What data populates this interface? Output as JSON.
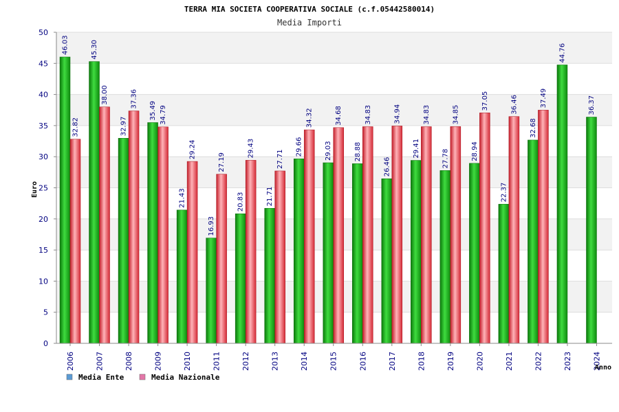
{
  "colors": {
    "ente": "#22b022",
    "nazionale": "#e5404b",
    "legend_ente": "#5b9bd5",
    "legend_nazionale": "#e377a8"
  },
  "chart_data": {
    "type": "bar",
    "title": "TERRA MIA SOCIETA COOPERATIVA SOCIALE (c.f.05442580014)",
    "subtitle": "Media Importi",
    "xlabel": "Anno",
    "ylabel": "Euro",
    "ylim": [
      0,
      50
    ],
    "yticks": [
      "0",
      "5",
      "10",
      "15",
      "20",
      "25",
      "30",
      "35",
      "40",
      "45",
      "50"
    ],
    "grid": true,
    "legend_position": "bottom-left",
    "categories": [
      "2006",
      "2007",
      "2008",
      "2009",
      "2010",
      "2011",
      "2012",
      "2013",
      "2014",
      "2015",
      "2016",
      "2017",
      "2018",
      "2019",
      "2020",
      "2021",
      "2022",
      "2023",
      "2024"
    ],
    "series": [
      {
        "name": "Media Ente",
        "values": [
          46.03,
          45.3,
          32.97,
          35.49,
          21.43,
          16.93,
          20.83,
          21.71,
          29.66,
          29.03,
          28.88,
          26.46,
          29.41,
          27.78,
          28.94,
          22.37,
          32.68,
          44.76,
          36.37
        ],
        "labels": [
          "46.03",
          "45.30",
          "32.97",
          "35.49",
          "21.43",
          "16.93",
          "20.83",
          "21.71",
          "29.66",
          "29.03",
          "28.88",
          "26.46",
          "29.41",
          "27.78",
          "28.94",
          "22.37",
          "32.68",
          "44.76",
          "36.37"
        ]
      },
      {
        "name": "Media Nazionale",
        "values": [
          32.82,
          38.0,
          37.36,
          34.79,
          29.24,
          27.19,
          29.43,
          27.71,
          34.32,
          34.68,
          34.83,
          34.94,
          34.83,
          34.85,
          37.05,
          36.46,
          37.49,
          null,
          null
        ],
        "labels": [
          "32.82",
          "38.00",
          "37.36",
          "34.79",
          "29.24",
          "27.19",
          "29.43",
          "27.71",
          "34.32",
          "34.68",
          "34.83",
          "34.94",
          "34.83",
          "34.85",
          "37.05",
          "36.46",
          "37.49",
          null,
          null
        ]
      }
    ]
  }
}
